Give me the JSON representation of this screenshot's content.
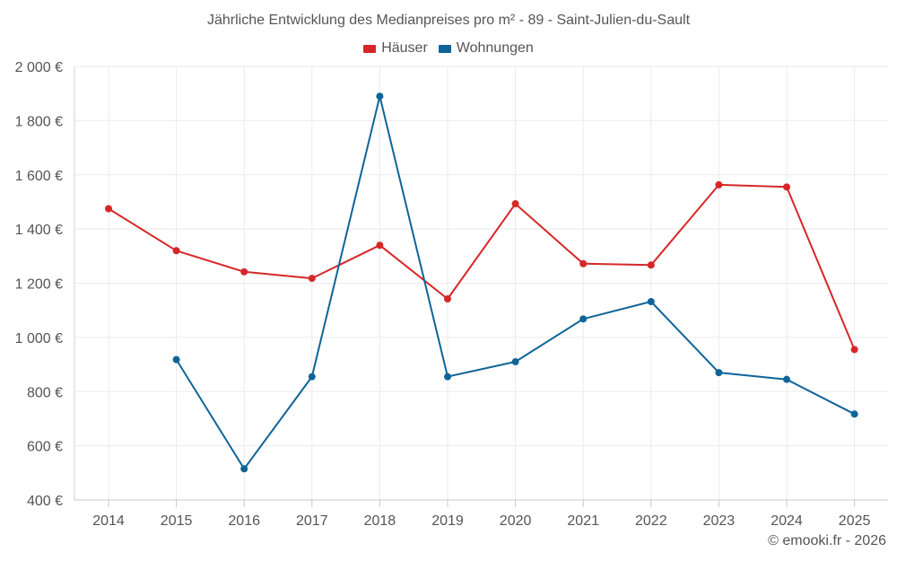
{
  "chart_data": {
    "type": "line",
    "title": "Jährliche Entwicklung des Medianpreises pro m² - 89 - Saint-Julien-du-Sault",
    "categories": [
      "2014",
      "2015",
      "2016",
      "2017",
      "2018",
      "2019",
      "2020",
      "2021",
      "2022",
      "2023",
      "2024",
      "2025"
    ],
    "ylim": [
      400,
      2000
    ],
    "yticks": [
      400,
      600,
      800,
      1000,
      1200,
      1400,
      1600,
      1800,
      2000
    ],
    "ytick_labels": [
      "400 €",
      "600 €",
      "800 €",
      "1 000 €",
      "1 200 €",
      "1 400 €",
      "1 600 €",
      "1 800 €",
      "2 000 €"
    ],
    "grid": true,
    "legend_position": "top-center",
    "series": [
      {
        "name": "Häuser",
        "color": "#d62728",
        "values": [
          1475,
          1320,
          1242,
          1218,
          1340,
          1142,
          1493,
          1272,
          1267,
          1563,
          1555,
          955
        ]
      },
      {
        "name": "Wohnungen",
        "color": "#0f6498",
        "values": [
          null,
          918,
          515,
          855,
          1890,
          855,
          910,
          1068,
          1132,
          870,
          845,
          717
        ]
      }
    ]
  },
  "credit": "© emooki.fr - 2026"
}
